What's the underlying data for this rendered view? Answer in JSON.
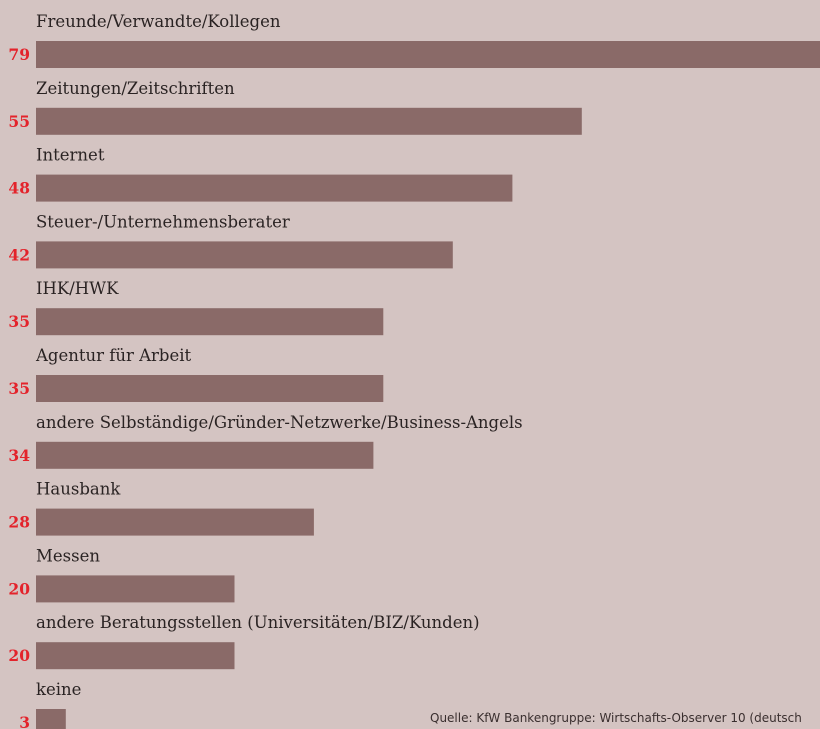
{
  "chart_data": {
    "type": "bar",
    "orientation": "horizontal",
    "categories": [
      "Freunde/Verwandte/Kollegen",
      "Zeitungen/Zeitschriften",
      "Internet",
      "Steuer-/Unternehmensberater",
      "IHK/HWK",
      "Agentur für Arbeit",
      "andere Selbständige/Gründer-Netzwerke/Business-Angels",
      "Hausbank",
      "Messen",
      "andere Beratungsstellen (Universitäten/BIZ/Kunden)",
      "keine"
    ],
    "values": [
      79,
      55,
      48,
      42,
      35,
      35,
      34,
      28,
      20,
      20,
      3
    ],
    "value_labels": [
      "79",
      "55",
      "48",
      "42",
      "35",
      "35",
      "34",
      "28",
      "20",
      "20",
      "3"
    ],
    "title": "",
    "xlabel": "",
    "ylabel": "",
    "grid": false,
    "colors": {
      "background": "#d4c4c2",
      "bar": "#8a6a68",
      "value_label": "#e3232b",
      "category_label": "#2a2323"
    }
  },
  "source": "Quelle: KfW Bankengruppe: Wirtschafts-Observer 10 (deutsch"
}
